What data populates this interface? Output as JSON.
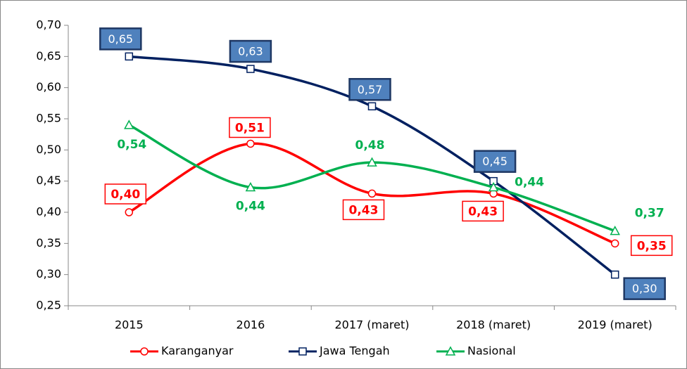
{
  "chart_data": {
    "type": "line",
    "categories": [
      "2015",
      "2016",
      "2017 (maret)",
      "2018 (maret)",
      "2019 (maret)"
    ],
    "series": [
      {
        "name": "Karanganyar",
        "color": "#ff0000",
        "marker": "circle",
        "values": [
          0.4,
          0.51,
          0.43,
          0.43,
          0.35
        ],
        "value_labels": [
          "0,40",
          "0,51",
          "0,43",
          "0,43",
          "0,35"
        ]
      },
      {
        "name": "Jawa Tengah",
        "color": "#002060",
        "marker": "square",
        "values": [
          0.65,
          0.63,
          0.57,
          0.45,
          0.3
        ],
        "value_labels": [
          "0,65",
          "0,63",
          "0,57",
          "0,45",
          "0,30"
        ]
      },
      {
        "name": "Nasional",
        "color": "#00b050",
        "marker": "triangle",
        "values": [
          0.54,
          0.44,
          0.48,
          0.44,
          0.37
        ],
        "value_labels": [
          "0,54",
          "0,44",
          "0,48",
          "0,44",
          "0,37"
        ]
      }
    ],
    "ylim": [
      0.25,
      0.7
    ],
    "yticks": [
      {
        "value": 0.25,
        "label": "0,25"
      },
      {
        "value": 0.3,
        "label": "0,30"
      },
      {
        "value": 0.35,
        "label": "0,35"
      },
      {
        "value": 0.4,
        "label": "0,40"
      },
      {
        "value": 0.45,
        "label": "0,45"
      },
      {
        "value": 0.5,
        "label": "0,50"
      },
      {
        "value": 0.55,
        "label": "0,55"
      },
      {
        "value": 0.6,
        "label": "0,60"
      },
      {
        "value": 0.65,
        "label": "0,65"
      },
      {
        "value": 0.7,
        "label": "0,70"
      }
    ],
    "grid": false,
    "legend": "bottom"
  }
}
